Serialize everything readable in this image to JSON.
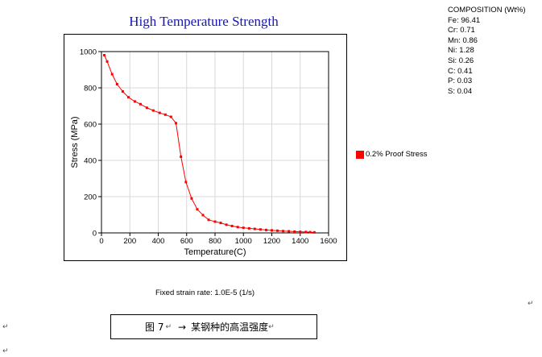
{
  "chart_data": {
    "type": "line",
    "title": "High Temperature Strength",
    "xlabel": "Temperature(C)",
    "ylabel": "Stress (MPa)",
    "xlim": [
      0,
      1600
    ],
    "ylim": [
      0,
      1000
    ],
    "xticks": [
      0,
      200,
      400,
      600,
      800,
      1000,
      1200,
      1400,
      1600
    ],
    "yticks": [
      0,
      200,
      400,
      600,
      800,
      1000
    ],
    "grid": true,
    "legend_position": "right",
    "series": [
      {
        "name": "0.2% Proof Stress",
        "color": "#ff0000",
        "x": [
          20,
          40,
          75,
          110,
          150,
          190,
          235,
          275,
          320,
          365,
          410,
          450,
          490,
          525,
          560,
          595,
          635,
          675,
          715,
          755,
          800,
          840,
          880,
          920,
          960,
          1000,
          1040,
          1080,
          1120,
          1160,
          1200,
          1240,
          1280,
          1320,
          1360,
          1400,
          1440,
          1470,
          1500
        ],
        "values": [
          980,
          945,
          875,
          820,
          780,
          748,
          725,
          710,
          690,
          675,
          662,
          652,
          640,
          605,
          420,
          280,
          190,
          130,
          98,
          72,
          62,
          55,
          45,
          38,
          32,
          28,
          25,
          22,
          19,
          16,
          14,
          12,
          10,
          9,
          7,
          6,
          5,
          4,
          3
        ]
      }
    ]
  },
  "composition": {
    "title": "COMPOSITION (Wt%)",
    "lines": [
      "Fe: 96.41",
      "Cr: 0.71",
      "Mn: 0.86",
      "Ni: 1.28",
      "Si: 0.26",
      "C: 0.41",
      "P: 0.03",
      "S: 0.04"
    ]
  },
  "footnote": "Fixed strain rate: 1.0E-5 (1/s)",
  "caption": {
    "figure_label": "图 7",
    "arrow": "→",
    "text": "某钢种的高温强度"
  },
  "return_mark": "↵"
}
